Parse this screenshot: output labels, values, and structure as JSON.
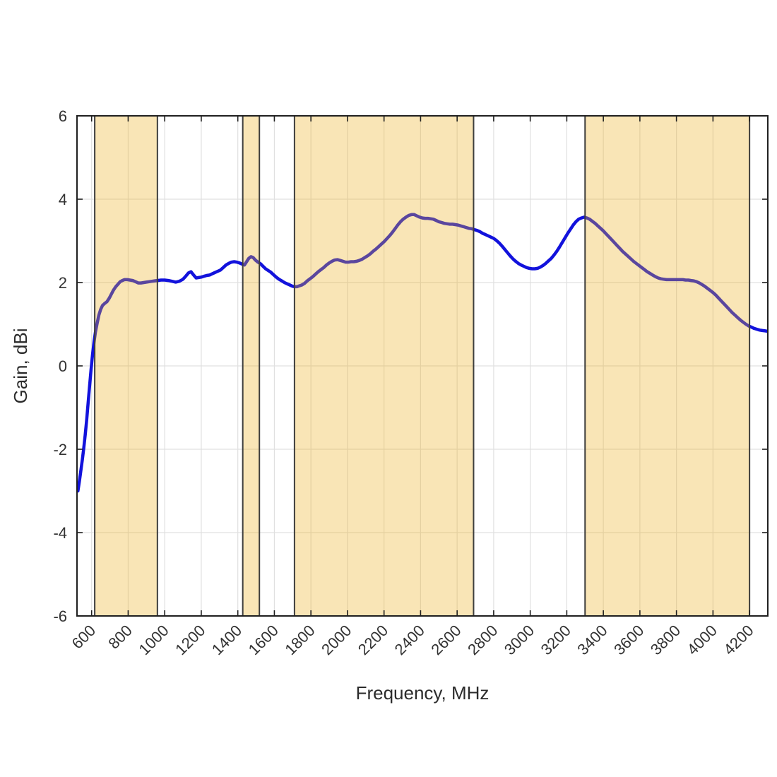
{
  "figure": {
    "background": "#ffffff"
  },
  "chart_data": {
    "type": "line",
    "title": "",
    "xlabel": "Frequency, MHz",
    "ylabel": "Gain, dBi",
    "xlim": [
      520,
      4300
    ],
    "ylim": [
      -6,
      6
    ],
    "xticks": [
      600,
      800,
      1000,
      1200,
      1400,
      1600,
      1800,
      2000,
      2200,
      2400,
      2600,
      2800,
      3000,
      3200,
      3400,
      3600,
      3800,
      4000,
      4200
    ],
    "yticks": [
      -6,
      -4,
      -2,
      0,
      2,
      4,
      6
    ],
    "grid": true,
    "x_tick_label_rotation": 45,
    "legend": "none",
    "colors": {
      "line": "#1212DC",
      "band_fill": "rgba(237,177,32,0.33)",
      "band_edge": "#3d3d3d",
      "grid": "#e0e0e0",
      "frame": "#1f1f1f",
      "text": "#333333"
    },
    "line_width": 4.5,
    "highlight_bands": [
      {
        "name": "band-617-960",
        "x0": 617,
        "x1": 960
      },
      {
        "name": "band-1427-1518",
        "x0": 1427,
        "x1": 1518
      },
      {
        "name": "band-1710-2690",
        "x0": 1710,
        "x1": 2690
      },
      {
        "name": "band-3300-4200",
        "x0": 3300,
        "x1": 4200
      }
    ],
    "series": [
      {
        "name": "Gain",
        "points": [
          [
            525,
            -3.0
          ],
          [
            533,
            -2.77
          ],
          [
            541,
            -2.52
          ],
          [
            549,
            -2.26
          ],
          [
            557,
            -1.97
          ],
          [
            565,
            -1.66
          ],
          [
            573,
            -1.3
          ],
          [
            581,
            -0.88
          ],
          [
            589,
            -0.47
          ],
          [
            597,
            -0.09
          ],
          [
            605,
            0.27
          ],
          [
            613,
            0.57
          ],
          [
            621,
            0.81
          ],
          [
            630,
            1.02
          ],
          [
            640,
            1.22
          ],
          [
            650,
            1.36
          ],
          [
            660,
            1.45
          ],
          [
            672,
            1.5
          ],
          [
            684,
            1.54
          ],
          [
            696,
            1.62
          ],
          [
            708,
            1.72
          ],
          [
            720,
            1.82
          ],
          [
            732,
            1.9
          ],
          [
            744,
            1.96
          ],
          [
            756,
            2.02
          ],
          [
            768,
            2.05
          ],
          [
            780,
            2.07
          ],
          [
            795,
            2.07
          ],
          [
            810,
            2.06
          ],
          [
            825,
            2.05
          ],
          [
            840,
            2.02
          ],
          [
            855,
            1.99
          ],
          [
            870,
            1.99
          ],
          [
            885,
            2.0
          ],
          [
            900,
            2.01
          ],
          [
            915,
            2.02
          ],
          [
            930,
            2.03
          ],
          [
            945,
            2.04
          ],
          [
            960,
            2.05
          ],
          [
            980,
            2.06
          ],
          [
            1000,
            2.06
          ],
          [
            1020,
            2.05
          ],
          [
            1040,
            2.03
          ],
          [
            1060,
            2.01
          ],
          [
            1080,
            2.03
          ],
          [
            1100,
            2.08
          ],
          [
            1115,
            2.15
          ],
          [
            1130,
            2.23
          ],
          [
            1144,
            2.26
          ],
          [
            1158,
            2.18
          ],
          [
            1172,
            2.11
          ],
          [
            1186,
            2.12
          ],
          [
            1200,
            2.13
          ],
          [
            1215,
            2.15
          ],
          [
            1230,
            2.17
          ],
          [
            1245,
            2.18
          ],
          [
            1260,
            2.21
          ],
          [
            1275,
            2.24
          ],
          [
            1290,
            2.27
          ],
          [
            1305,
            2.3
          ],
          [
            1320,
            2.36
          ],
          [
            1335,
            2.42
          ],
          [
            1350,
            2.46
          ],
          [
            1365,
            2.49
          ],
          [
            1380,
            2.5
          ],
          [
            1395,
            2.49
          ],
          [
            1410,
            2.47
          ],
          [
            1424,
            2.44
          ],
          [
            1436,
            2.42
          ],
          [
            1448,
            2.5
          ],
          [
            1460,
            2.58
          ],
          [
            1472,
            2.62
          ],
          [
            1484,
            2.6
          ],
          [
            1496,
            2.54
          ],
          [
            1510,
            2.49
          ],
          [
            1524,
            2.45
          ],
          [
            1538,
            2.39
          ],
          [
            1552,
            2.33
          ],
          [
            1566,
            2.29
          ],
          [
            1580,
            2.25
          ],
          [
            1595,
            2.19
          ],
          [
            1610,
            2.13
          ],
          [
            1625,
            2.08
          ],
          [
            1640,
            2.04
          ],
          [
            1655,
            2.0
          ],
          [
            1670,
            1.97
          ],
          [
            1685,
            1.94
          ],
          [
            1700,
            1.91
          ],
          [
            1712,
            1.9
          ],
          [
            1724,
            1.9
          ],
          [
            1736,
            1.92
          ],
          [
            1750,
            1.94
          ],
          [
            1765,
            1.98
          ],
          [
            1780,
            2.04
          ],
          [
            1795,
            2.09
          ],
          [
            1810,
            2.14
          ],
          [
            1825,
            2.2
          ],
          [
            1840,
            2.26
          ],
          [
            1855,
            2.31
          ],
          [
            1870,
            2.36
          ],
          [
            1885,
            2.42
          ],
          [
            1900,
            2.47
          ],
          [
            1915,
            2.51
          ],
          [
            1930,
            2.54
          ],
          [
            1945,
            2.55
          ],
          [
            1960,
            2.53
          ],
          [
            1975,
            2.51
          ],
          [
            1990,
            2.49
          ],
          [
            2005,
            2.49
          ],
          [
            2020,
            2.5
          ],
          [
            2035,
            2.5
          ],
          [
            2050,
            2.51
          ],
          [
            2065,
            2.53
          ],
          [
            2080,
            2.56
          ],
          [
            2095,
            2.6
          ],
          [
            2110,
            2.64
          ],
          [
            2125,
            2.69
          ],
          [
            2140,
            2.75
          ],
          [
            2155,
            2.8
          ],
          [
            2170,
            2.86
          ],
          [
            2185,
            2.92
          ],
          [
            2200,
            2.98
          ],
          [
            2215,
            3.05
          ],
          [
            2230,
            3.12
          ],
          [
            2245,
            3.2
          ],
          [
            2260,
            3.29
          ],
          [
            2275,
            3.38
          ],
          [
            2290,
            3.46
          ],
          [
            2305,
            3.52
          ],
          [
            2320,
            3.57
          ],
          [
            2335,
            3.61
          ],
          [
            2350,
            3.63
          ],
          [
            2365,
            3.63
          ],
          [
            2380,
            3.6
          ],
          [
            2395,
            3.57
          ],
          [
            2410,
            3.55
          ],
          [
            2425,
            3.54
          ],
          [
            2440,
            3.54
          ],
          [
            2455,
            3.53
          ],
          [
            2470,
            3.52
          ],
          [
            2485,
            3.49
          ],
          [
            2500,
            3.46
          ],
          [
            2515,
            3.44
          ],
          [
            2530,
            3.42
          ],
          [
            2545,
            3.41
          ],
          [
            2560,
            3.4
          ],
          [
            2575,
            3.4
          ],
          [
            2590,
            3.39
          ],
          [
            2605,
            3.38
          ],
          [
            2620,
            3.36
          ],
          [
            2635,
            3.34
          ],
          [
            2650,
            3.32
          ],
          [
            2665,
            3.3
          ],
          [
            2680,
            3.29
          ],
          [
            2695,
            3.27
          ],
          [
            2710,
            3.25
          ],
          [
            2725,
            3.22
          ],
          [
            2740,
            3.18
          ],
          [
            2755,
            3.15
          ],
          [
            2770,
            3.12
          ],
          [
            2785,
            3.09
          ],
          [
            2800,
            3.06
          ],
          [
            2815,
            3.01
          ],
          [
            2830,
            2.95
          ],
          [
            2845,
            2.88
          ],
          [
            2860,
            2.8
          ],
          [
            2875,
            2.72
          ],
          [
            2890,
            2.64
          ],
          [
            2905,
            2.57
          ],
          [
            2920,
            2.51
          ],
          [
            2935,
            2.46
          ],
          [
            2950,
            2.42
          ],
          [
            2965,
            2.39
          ],
          [
            2980,
            2.36
          ],
          [
            2995,
            2.34
          ],
          [
            3010,
            2.33
          ],
          [
            3025,
            2.33
          ],
          [
            3040,
            2.34
          ],
          [
            3055,
            2.37
          ],
          [
            3070,
            2.41
          ],
          [
            3085,
            2.46
          ],
          [
            3100,
            2.52
          ],
          [
            3115,
            2.58
          ],
          [
            3130,
            2.66
          ],
          [
            3145,
            2.75
          ],
          [
            3160,
            2.85
          ],
          [
            3175,
            2.96
          ],
          [
            3190,
            3.07
          ],
          [
            3205,
            3.18
          ],
          [
            3220,
            3.28
          ],
          [
            3235,
            3.38
          ],
          [
            3250,
            3.46
          ],
          [
            3265,
            3.52
          ],
          [
            3280,
            3.55
          ],
          [
            3295,
            3.57
          ],
          [
            3310,
            3.55
          ],
          [
            3325,
            3.52
          ],
          [
            3340,
            3.47
          ],
          [
            3355,
            3.42
          ],
          [
            3370,
            3.36
          ],
          [
            3385,
            3.3
          ],
          [
            3400,
            3.24
          ],
          [
            3415,
            3.17
          ],
          [
            3430,
            3.1
          ],
          [
            3445,
            3.03
          ],
          [
            3460,
            2.96
          ],
          [
            3475,
            2.89
          ],
          [
            3490,
            2.82
          ],
          [
            3505,
            2.75
          ],
          [
            3520,
            2.69
          ],
          [
            3535,
            2.63
          ],
          [
            3550,
            2.57
          ],
          [
            3565,
            2.51
          ],
          [
            3580,
            2.46
          ],
          [
            3595,
            2.41
          ],
          [
            3610,
            2.36
          ],
          [
            3625,
            2.31
          ],
          [
            3640,
            2.26
          ],
          [
            3655,
            2.22
          ],
          [
            3670,
            2.18
          ],
          [
            3685,
            2.14
          ],
          [
            3700,
            2.11
          ],
          [
            3715,
            2.09
          ],
          [
            3730,
            2.08
          ],
          [
            3745,
            2.07
          ],
          [
            3760,
            2.07
          ],
          [
            3775,
            2.07
          ],
          [
            3790,
            2.07
          ],
          [
            3805,
            2.07
          ],
          [
            3820,
            2.07
          ],
          [
            3835,
            2.07
          ],
          [
            3850,
            2.06
          ],
          [
            3865,
            2.06
          ],
          [
            3880,
            2.05
          ],
          [
            3895,
            2.04
          ],
          [
            3910,
            2.02
          ],
          [
            3925,
            1.99
          ],
          [
            3940,
            1.95
          ],
          [
            3955,
            1.91
          ],
          [
            3970,
            1.86
          ],
          [
            3985,
            1.81
          ],
          [
            4000,
            1.76
          ],
          [
            4015,
            1.7
          ],
          [
            4030,
            1.63
          ],
          [
            4045,
            1.56
          ],
          [
            4060,
            1.49
          ],
          [
            4075,
            1.42
          ],
          [
            4090,
            1.35
          ],
          [
            4105,
            1.28
          ],
          [
            4120,
            1.22
          ],
          [
            4135,
            1.16
          ],
          [
            4150,
            1.1
          ],
          [
            4165,
            1.05
          ],
          [
            4180,
            1.0
          ],
          [
            4195,
            0.96
          ],
          [
            4210,
            0.93
          ],
          [
            4225,
            0.9
          ],
          [
            4240,
            0.88
          ],
          [
            4255,
            0.86
          ],
          [
            4270,
            0.85
          ],
          [
            4285,
            0.84
          ],
          [
            4300,
            0.83
          ]
        ]
      }
    ]
  }
}
